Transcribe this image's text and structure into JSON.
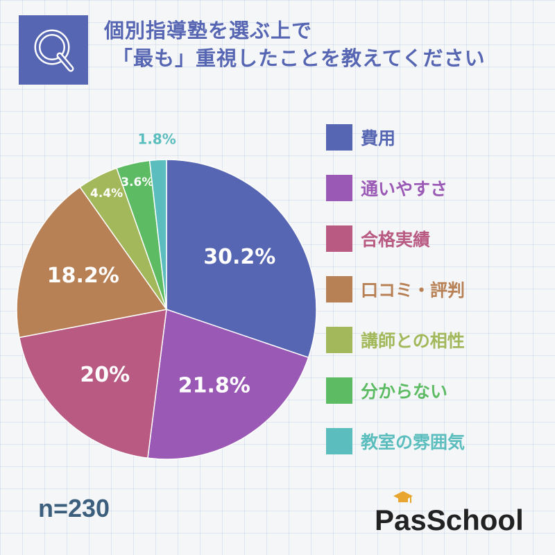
{
  "question": {
    "line1": "個別指導塾を選ぶ上で",
    "line2": "「最も」重視したことを教えてください",
    "badge": "Q"
  },
  "sample_size": "n=230",
  "brand": {
    "prefix": "P",
    "a": "a",
    "suffix": "sSchool"
  },
  "chart_data": {
    "type": "pie",
    "title": "",
    "slices": [
      {
        "label": "費用",
        "value": 30.2,
        "display": "30.2%",
        "color": "#5766b3"
      },
      {
        "label": "通いやすさ",
        "value": 21.8,
        "display": "21.8%",
        "color": "#9b59b6"
      },
      {
        "label": "合格実績",
        "value": 20,
        "display": "20%",
        "color": "#b85a82"
      },
      {
        "label": "口コミ・評判",
        "value": 18.2,
        "display": "18.2%",
        "color": "#b88055"
      },
      {
        "label": "講師との相性",
        "value": 4.4,
        "display": "4.4%",
        "color": "#a3b85a"
      },
      {
        "label": "分からない",
        "value": 3.6,
        "display": "3.6%",
        "color": "#5dbb63"
      },
      {
        "label": "教室の雰囲気",
        "value": 1.8,
        "display": "1.8%",
        "color": "#5bbdbd"
      }
    ],
    "start_angle_deg": 0,
    "direction": "clockwise",
    "legend_position": "right"
  }
}
